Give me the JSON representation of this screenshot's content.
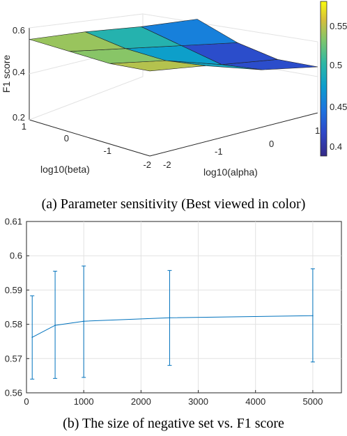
{
  "chart_data": [
    {
      "type": "surface",
      "zlabel": "F1 score",
      "xlabel": "log10(beta)",
      "ylabel": "log10(alpha)",
      "beta_ticks": [
        "1",
        "0",
        "-1",
        "-2"
      ],
      "alpha_ticks": [
        "-2",
        "-1",
        "0",
        "1"
      ],
      "z_ticks": [
        "0.2",
        "0.4",
        "0.6"
      ],
      "zlim": [
        0.2,
        0.6
      ],
      "colorbar_ticks": [
        "0.55",
        "0.5",
        "0.45",
        "0.4"
      ],
      "colorbar_range": [
        0.38,
        0.57
      ],
      "caption": "(a) Parameter sensitivity (Best viewed in color)",
      "f1_surface": [
        {
          "log10_beta": 1,
          "log10_alpha": -2,
          "f1": 0.55
        },
        {
          "log10_beta": 1,
          "log10_alpha": -1,
          "f1": 0.52
        },
        {
          "log10_beta": 1,
          "log10_alpha": 0,
          "f1": 0.48
        },
        {
          "log10_beta": 1,
          "log10_alpha": 1,
          "f1": 0.45
        },
        {
          "log10_beta": 0,
          "log10_alpha": -2,
          "f1": 0.55
        },
        {
          "log10_beta": 0,
          "log10_alpha": -1,
          "f1": 0.5
        },
        {
          "log10_beta": 0,
          "log10_alpha": 0,
          "f1": 0.45
        },
        {
          "log10_beta": 0,
          "log10_alpha": 1,
          "f1": 0.4
        },
        {
          "log10_beta": -1,
          "log10_alpha": -2,
          "f1": 0.55
        },
        {
          "log10_beta": -1,
          "log10_alpha": -1,
          "f1": 0.5
        },
        {
          "log10_beta": -1,
          "log10_alpha": 0,
          "f1": 0.42
        },
        {
          "log10_beta": -1,
          "log10_alpha": 1,
          "f1": 0.38
        },
        {
          "log10_beta": -2,
          "log10_alpha": -2,
          "f1": 0.57
        },
        {
          "log10_beta": -2,
          "log10_alpha": -1,
          "f1": 0.53
        },
        {
          "log10_beta": -2,
          "log10_alpha": 0,
          "f1": 0.45
        },
        {
          "log10_beta": -2,
          "log10_alpha": 1,
          "f1": 0.4
        }
      ]
    },
    {
      "type": "line",
      "x": [
        100,
        500,
        1000,
        2500,
        5000
      ],
      "y": [
        0.5762,
        0.5797,
        0.5809,
        0.5819,
        0.5825
      ],
      "error_low": [
        0.564,
        0.5642,
        0.5645,
        0.568,
        0.569
      ],
      "error_high": [
        0.5883,
        0.5955,
        0.597,
        0.5957,
        0.5962
      ],
      "xlim": [
        0,
        5500
      ],
      "ylim": [
        0.56,
        0.61
      ],
      "x_ticks": [
        0,
        1000,
        2000,
        3000,
        4000,
        5000
      ],
      "y_ticks": [
        "0.56",
        "0.57",
        "0.58",
        "0.59",
        "0.6",
        "0.61"
      ],
      "x_tick_labels": [
        "0",
        "1000",
        "2000",
        "3000",
        "4000",
        "5000"
      ],
      "grid": true,
      "line_color": "#0072BD",
      "caption": "(b) The size of negative set vs. F1 score"
    }
  ]
}
